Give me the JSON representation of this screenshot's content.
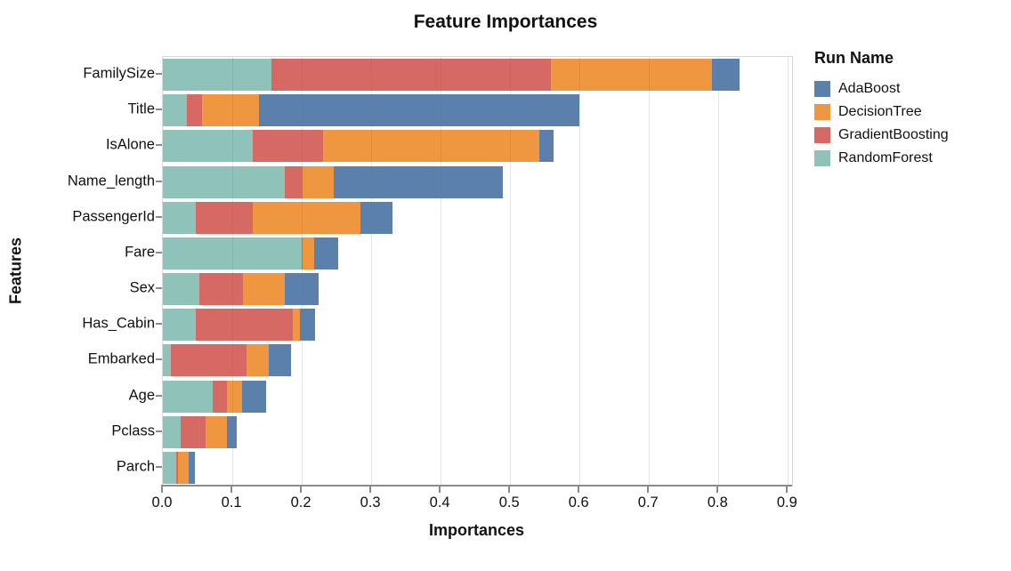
{
  "chart_data": {
    "type": "bar",
    "orientation": "horizontal",
    "stacked": true,
    "title": "Feature Importances",
    "xlabel": "Importances",
    "ylabel": "Features",
    "legend_title": "Run Name",
    "legend_position": "right",
    "grid": true,
    "xlim": [
      0,
      0.906
    ],
    "x_ticks": [
      "0.0",
      "0.1",
      "0.2",
      "0.3",
      "0.4",
      "0.5",
      "0.6",
      "0.7",
      "0.8",
      "0.9"
    ],
    "categories": [
      "FamilySize",
      "Title",
      "IsAlone",
      "Name_length",
      "PassengerId",
      "Fare",
      "Sex",
      "Has_Cabin",
      "Embarked",
      "Age",
      "Pclass",
      "Parch"
    ],
    "series": [
      {
        "name": "RandomForest",
        "color": "#8fc2b9",
        "values": [
          0.156,
          0.035,
          0.129,
          0.175,
          0.048,
          0.2,
          0.053,
          0.048,
          0.011,
          0.072,
          0.026,
          0.019
        ]
      },
      {
        "name": "GradientBoosting",
        "color": "#d66964",
        "values": [
          0.403,
          0.021,
          0.102,
          0.026,
          0.082,
          0.001,
          0.062,
          0.139,
          0.109,
          0.02,
          0.036,
          0.003
        ]
      },
      {
        "name": "DecisionTree",
        "color": "#ee9640",
        "values": [
          0.232,
          0.082,
          0.311,
          0.045,
          0.154,
          0.017,
          0.061,
          0.01,
          0.033,
          0.022,
          0.03,
          0.015
        ]
      },
      {
        "name": "AdaBoost",
        "color": "#5b80ac",
        "values": [
          0.04,
          0.462,
          0.02,
          0.243,
          0.046,
          0.035,
          0.048,
          0.022,
          0.031,
          0.035,
          0.015,
          0.009
        ]
      }
    ],
    "legend_order": [
      "AdaBoost",
      "DecisionTree",
      "GradientBoosting",
      "RandomForest"
    ],
    "totals": [
      0.831,
      0.6,
      0.562,
      0.489,
      0.33,
      0.253,
      0.224,
      0.219,
      0.184,
      0.149,
      0.107,
      0.046
    ],
    "colors": {
      "axis_line": "#8a8a8a",
      "grid_line": "#e2e2e2",
      "plot_border": "#d8d8d8",
      "text": "#111111"
    }
  }
}
